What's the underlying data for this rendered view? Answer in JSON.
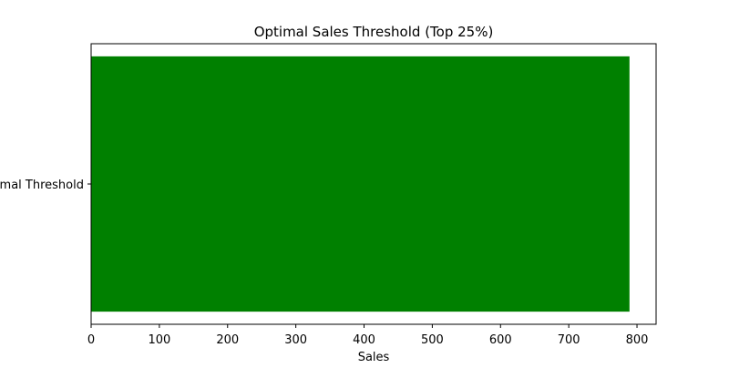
{
  "chart_data": {
    "type": "bar",
    "orientation": "horizontal",
    "title": "Optimal Sales Threshold (Top 25%)",
    "xlabel": "Sales",
    "ylabel": "",
    "categories": [
      "Optimal Threshold"
    ],
    "values": [
      789
    ],
    "xlim": [
      0,
      828
    ],
    "x_ticks": [
      0,
      100,
      200,
      300,
      400,
      500,
      600,
      700,
      800
    ],
    "bar_color": "#008000",
    "grid": false,
    "legend": "none"
  }
}
